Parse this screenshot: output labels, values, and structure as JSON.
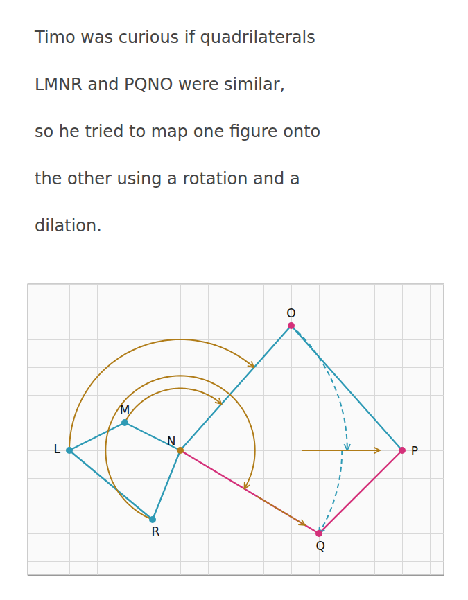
{
  "chart_data": {
    "type": "scatter",
    "title": [
      "Timo was curious if quadrilaterals",
      "LMNR and PQNO were similar,",
      "so he tried to map one figure onto",
      "the other using a rotation and a",
      "dilation."
    ],
    "x": [
      -5.0,
      -3.0,
      -1.0,
      -2.0,
      3.0,
      7.0,
      4.0
    ],
    "values": [
      0.0,
      1.0,
      0.0,
      -2.5,
      4.5,
      0.0,
      -3.0
    ],
    "point_labels": [
      "L",
      "M",
      "N",
      "R",
      "O",
      "P",
      "Q"
    ],
    "colors": [
      "#2e9ab5",
      "#2e9ab5",
      "#b07c18",
      "#2e9ab5",
      "#d4317a",
      "#d4317a",
      "#d4317a"
    ],
    "series": [
      {
        "type": "line",
        "color": "#2e9ab5",
        "x": [
          -5.0,
          -3.0,
          -1.0,
          -2.0,
          -5.0
        ],
        "values": [
          0.0,
          1.0,
          0.0,
          -2.5,
          0.0
        ]
      },
      {
        "type": "line",
        "color": "#d4317a",
        "x": [
          7.0,
          4.0,
          -1.0
        ],
        "values": [
          0.0,
          -3.0,
          0.0
        ]
      },
      {
        "type": "line",
        "color": "#2e9ab5",
        "x": [
          -1.0,
          3.0,
          7.0
        ],
        "values": [
          0.0,
          4.5,
          0.0
        ]
      }
    ],
    "arcs": [
      {
        "center": "N",
        "radius_to": "L",
        "from": "L",
        "to": "O",
        "color": "#b07c18",
        "line_style": "solid"
      },
      {
        "center": "N",
        "radius_to": "M",
        "from": "M",
        "to": "O",
        "color": "#b07c18",
        "line_style": "solid"
      },
      {
        "center": "N",
        "radius_to": "R",
        "from": "R",
        "to": "Q",
        "color": "#b07c18",
        "line_style": "solid"
      },
      {
        "center": "N",
        "radius_to": "O",
        "from": "O",
        "to": "P",
        "color": "#2e9ab5",
        "line_style": "dashed"
      },
      {
        "center": "N",
        "radius_to": "Q",
        "from": "P",
        "to": "Q",
        "color": "#2e9ab5",
        "line_style": "dashed"
      }
    ],
    "arrows": [
      {
        "from": "N",
        "to": "Q",
        "color": "#b07c18"
      },
      {
        "from": "N",
        "to": "P",
        "color": "#b07c18"
      }
    ],
    "xlim": [
      -6.5,
      8.5
    ],
    "ylim": [
      -4.5,
      6.0
    ],
    "xticks": [
      -6,
      -5,
      -4,
      -3,
      -2,
      -1,
      0,
      1,
      2,
      3,
      4,
      5,
      6,
      7,
      8
    ],
    "yticks": [
      -4,
      -3,
      -2,
      -1,
      0,
      1,
      2,
      3,
      4,
      5,
      6
    ],
    "grid": true,
    "tick_labels": false
  }
}
